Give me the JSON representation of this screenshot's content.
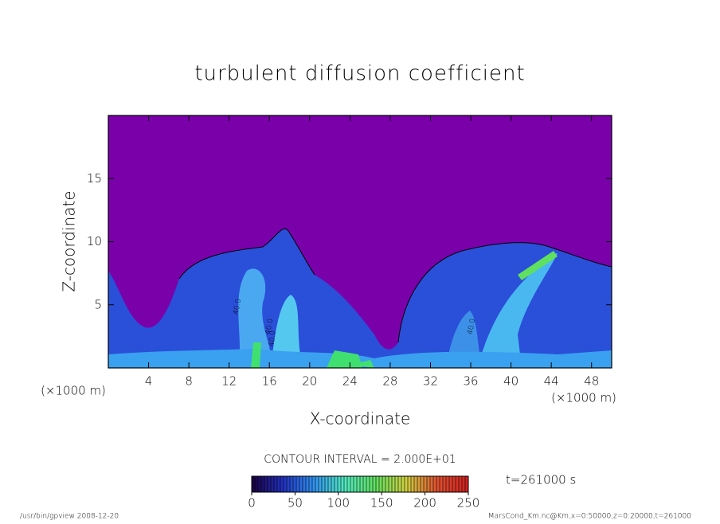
{
  "chart_data": {
    "type": "contour",
    "title": "turbulent diffusion coefficient",
    "xlabel": "X-coordinate",
    "ylabel": "Z-coordinate",
    "x_unit": "(×1000 m)",
    "x_unit_right": "(×1000 m)",
    "xlim": [
      0,
      50
    ],
    "ylim": [
      0,
      20
    ],
    "xticks": [
      4,
      8,
      12,
      16,
      20,
      24,
      28,
      32,
      36,
      40,
      44,
      48
    ],
    "yticks": [
      5,
      10,
      15
    ],
    "background_color": "#7a00aa",
    "contour_interval": "CONTOUR INTERVAL = 2.000E+01",
    "time_label": "t=261000 s",
    "colorbar_lim": [
      0,
      250
    ],
    "colorbar_ticks": [
      0,
      50,
      100,
      150,
      200,
      250
    ],
    "colormap": [
      "#1a0040",
      "#2230c0",
      "#3090f0",
      "#50e8c0",
      "#60e060",
      "#d0d040",
      "#e05030",
      "#d02020"
    ],
    "annotations": [
      "40.0",
      "40.0",
      "40.0",
      "40.0"
    ],
    "footer_left": "/usr/bin/gpview   2008-12-20",
    "footer_right": "MarsCond_Km.nc@Km,x=0:50000,z=0:20000,t=261000"
  }
}
